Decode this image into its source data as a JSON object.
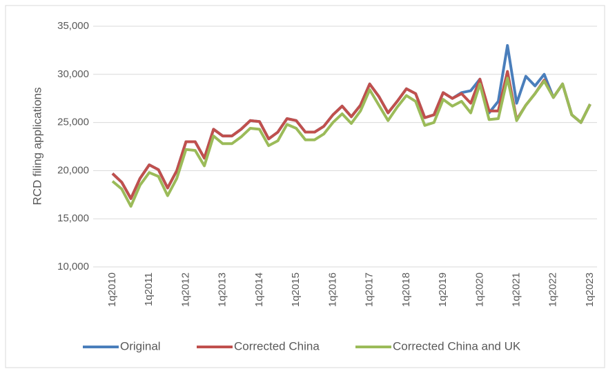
{
  "chart_data": {
    "type": "line",
    "y_label": "RCD filing applications",
    "categories": [
      "1q2010",
      null,
      null,
      null,
      "1q2011",
      null,
      null,
      null,
      "1q2012",
      null,
      null,
      null,
      "1q2013",
      null,
      null,
      null,
      "1q2014",
      null,
      null,
      null,
      "1q2015",
      null,
      null,
      null,
      "1q2016",
      null,
      null,
      null,
      "1q2017",
      null,
      null,
      null,
      "1q2018",
      null,
      null,
      null,
      "1q2019",
      null,
      null,
      null,
      "1q2020",
      null,
      null,
      null,
      "1q2021",
      null,
      null,
      null,
      "1q2022",
      null,
      null,
      null,
      "1q2023"
    ],
    "series": [
      {
        "name": "Original",
        "color": "#4a7ebb",
        "values": [
          19700,
          18800,
          17100,
          19200,
          20600,
          20100,
          18200,
          20000,
          23000,
          23000,
          21300,
          24300,
          23600,
          23600,
          24300,
          25200,
          25100,
          23300,
          24000,
          25400,
          25200,
          24000,
          24000,
          24600,
          25800,
          26700,
          25600,
          26800,
          29000,
          27700,
          26000,
          27200,
          28500,
          28000,
          25500,
          25800,
          28100,
          27500,
          28100,
          28300,
          29500,
          26000,
          27200,
          33000,
          27000,
          29800,
          28800,
          30000,
          27600,
          29000,
          25800,
          25000,
          26900
        ]
      },
      {
        "name": "Corrected China",
        "color": "#c0504d",
        "values": [
          19700,
          18800,
          17100,
          19200,
          20600,
          20100,
          18200,
          20000,
          23000,
          23000,
          21300,
          24300,
          23600,
          23600,
          24300,
          25200,
          25100,
          23300,
          24000,
          25400,
          25200,
          24000,
          24000,
          24600,
          25800,
          26700,
          25600,
          26800,
          29000,
          27700,
          26000,
          27200,
          28500,
          28000,
          25500,
          25800,
          28100,
          27500,
          28000,
          27000,
          29500,
          26200,
          26200,
          30300,
          25300,
          26800,
          28000,
          29400,
          27600,
          29000,
          25800,
          25000,
          26900
        ]
      },
      {
        "name": "Corrected China and UK",
        "color": "#9bbb59",
        "values": [
          18900,
          18100,
          16300,
          18500,
          19800,
          19400,
          17400,
          19200,
          22200,
          22100,
          20500,
          23600,
          22800,
          22800,
          23500,
          24400,
          24300,
          22600,
          23100,
          24800,
          24400,
          23200,
          23200,
          23800,
          25000,
          25900,
          24900,
          26200,
          28400,
          26800,
          25200,
          26600,
          27800,
          27200,
          24700,
          25000,
          27400,
          26700,
          27200,
          26000,
          29000,
          25300,
          25400,
          29600,
          25200,
          26800,
          28000,
          29300,
          27600,
          29000,
          25800,
          25000,
          26900
        ]
      }
    ],
    "ylim": [
      10000,
      35000
    ],
    "yticks": [
      {
        "value": 10000,
        "label": "10,000"
      },
      {
        "value": 15000,
        "label": "15,000"
      },
      {
        "value": 20000,
        "label": "20,000"
      },
      {
        "value": 25000,
        "label": "25,000"
      },
      {
        "value": 30000,
        "label": "30,000"
      },
      {
        "value": 35000,
        "label": "35,000"
      }
    ],
    "grid": true,
    "legend": "bottom"
  }
}
